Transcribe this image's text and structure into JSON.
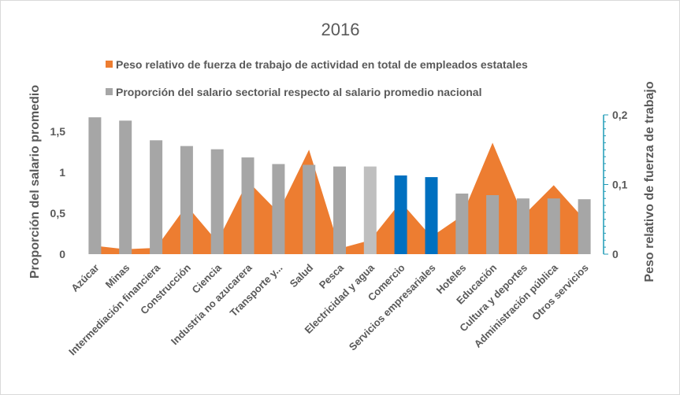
{
  "chart_data": {
    "type": "bar",
    "title": "2016",
    "legend_position": "top",
    "grid": false,
    "categories": [
      "Azúcar",
      "Minas",
      "Intermediación financiera",
      "Construcción",
      "Ciencia",
      "Industria no azucarera",
      "Transporte y...",
      "Salud",
      "Pesca",
      "Electricidad y agua",
      "Comercio",
      "Servicios empresariales",
      "Hoteles",
      "Educación",
      "Cultura y deportes",
      "Administración pública",
      "Otros servicios"
    ],
    "series": [
      {
        "name": "Peso relativo de fuerza de trabajo de actividad en total de empleados estatales",
        "type": "area",
        "axis": "right",
        "color": "#ED7D31",
        "values": [
          0.012,
          0.007,
          0.009,
          0.07,
          0.018,
          0.105,
          0.06,
          0.15,
          0.008,
          0.02,
          0.075,
          0.025,
          0.055,
          0.16,
          0.055,
          0.099,
          0.05
        ]
      },
      {
        "name": "Proporción del salario sectorial respecto al salario promedio nacional",
        "type": "bar",
        "axis": "left",
        "color": "#A6A6A6",
        "highlight_colors": {
          "9": "#BFBFBF",
          "10": "#0070C0",
          "11": "#0070C0"
        },
        "values": [
          1.67,
          1.63,
          1.39,
          1.32,
          1.28,
          1.18,
          1.1,
          1.09,
          1.07,
          1.07,
          0.96,
          0.94,
          0.74,
          0.72,
          0.68,
          0.68,
          0.67
        ]
      }
    ],
    "y_left": {
      "label": "Proporción del salario promedio",
      "ticks": [
        "0",
        "0,5",
        "1",
        "1,5"
      ],
      "tick_values": [
        0,
        0.5,
        1,
        1.5
      ],
      "ylim": [
        0,
        1.7
      ]
    },
    "y_right": {
      "label": "Peso relativo de fuerza de trabajo",
      "ticks": [
        "0",
        "0,1",
        "0,2"
      ],
      "tick_values": [
        0,
        0.1,
        0.2
      ],
      "ylim": [
        0,
        0.2
      ],
      "color": "#1F9BB7"
    }
  }
}
